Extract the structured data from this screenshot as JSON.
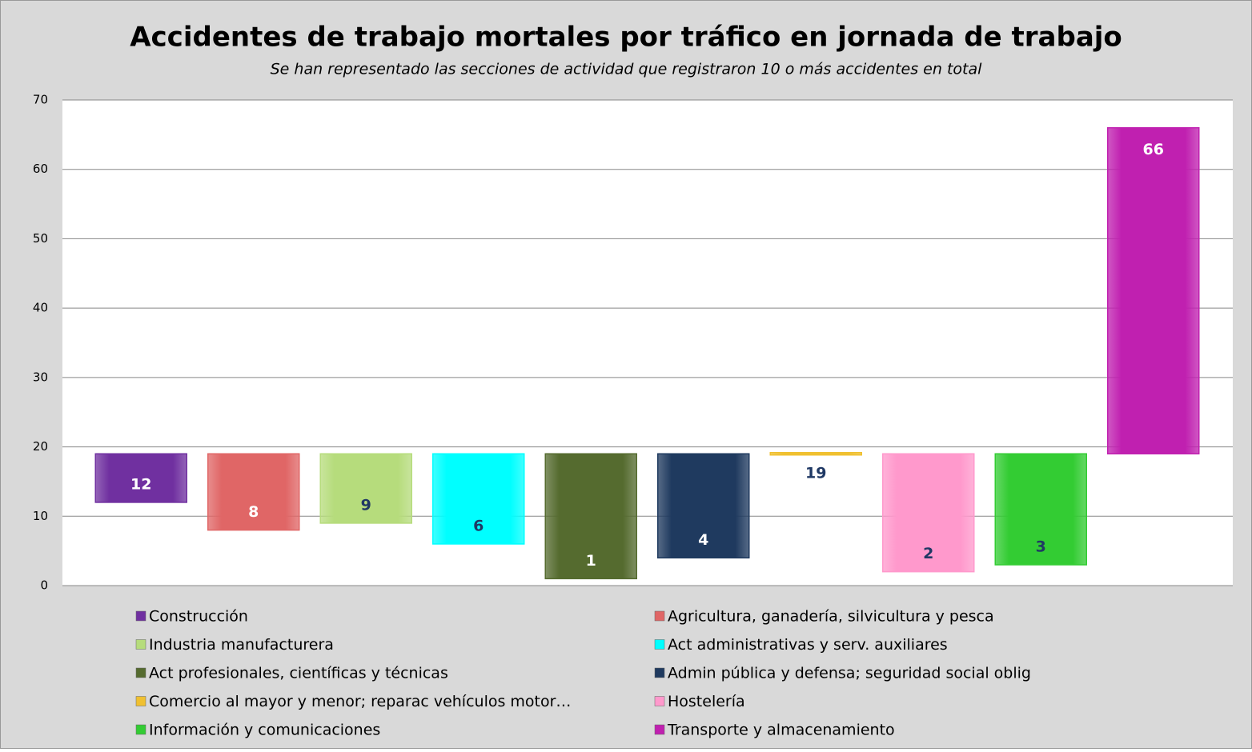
{
  "chart_data": {
    "type": "bar",
    "title": "Accidentes de trabajo mortales por tráfico en jornada de trabajo",
    "subtitle": "Se han representado las secciones de actividad que registraron 10 o más accidentes en total",
    "categories": [
      "Construcción",
      "Agricultura, ganadería, silvicultura y pesca",
      "Industria manufacturera",
      "Act administrativas y serv. auxiliares",
      "Act profesionales, científicas y técnicas",
      "Admin pública y defensa; seguridad social oblig",
      "Comercio al mayor y menor; reparac vehículos motor…",
      "Hostelería",
      "Información y comunicaciones",
      "Transporte y almacenamiento"
    ],
    "values": [
      12,
      8,
      9,
      6,
      1,
      4,
      19,
      2,
      3,
      66
    ],
    "colors": [
      "#7030a0",
      "#e06666",
      "#b6dc7c",
      "#00ffff",
      "#556b2f",
      "#1f3a5f",
      "#f0c030",
      "#ff99cc",
      "#33cc33",
      "#c020b0"
    ],
    "label_colors": [
      "#ffffff",
      "#ffffff",
      "#1f3864",
      "#1f3864",
      "#ffffff",
      "#ffffff",
      "#1f3864",
      "#1f3864",
      "#1f3864",
      "#ffffff"
    ],
    "axis_crosses_at": 19,
    "ylim": [
      0,
      70
    ],
    "yticks": [
      0,
      10,
      20,
      30,
      40,
      50,
      60,
      70
    ],
    "grid": true
  }
}
